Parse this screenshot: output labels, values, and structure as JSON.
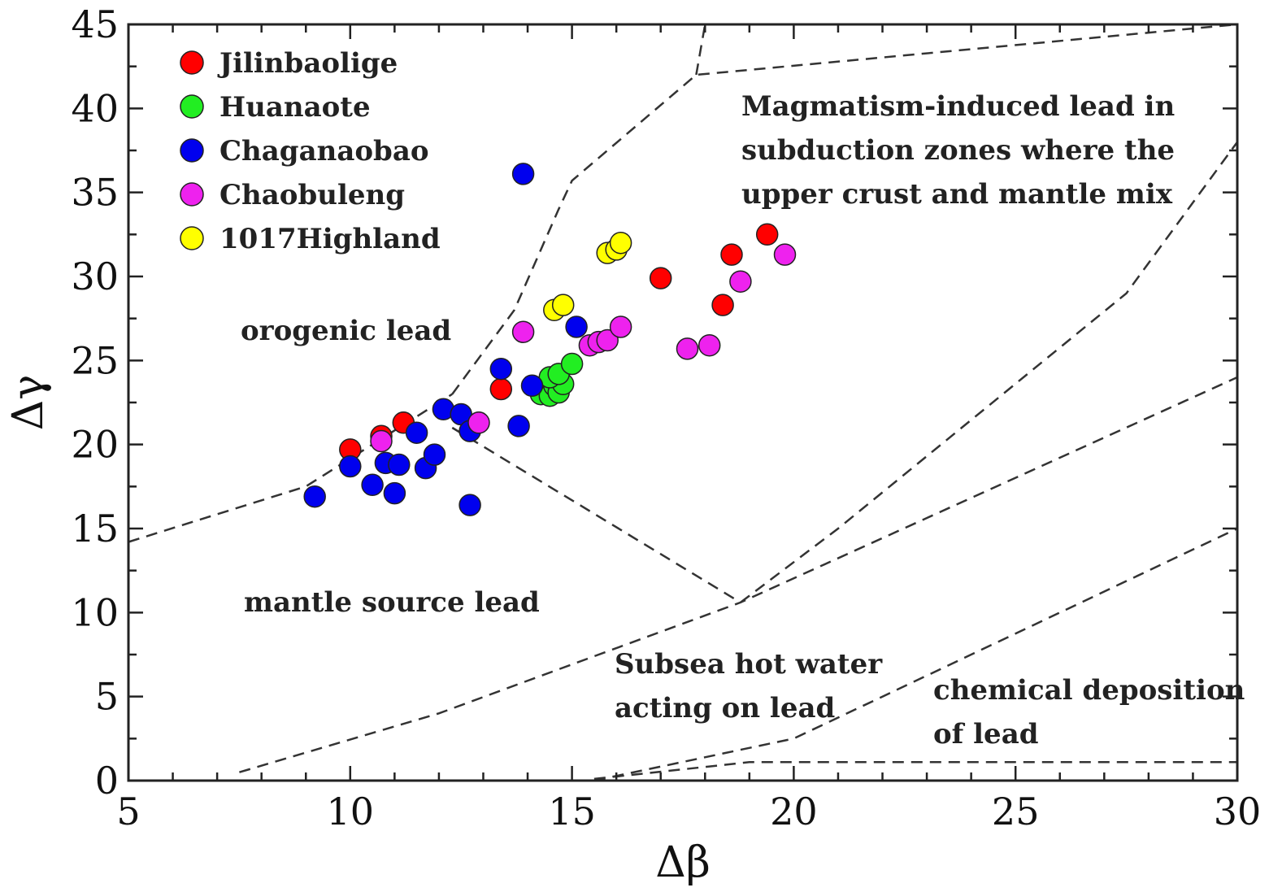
{
  "chart_data": {
    "type": "scatter",
    "title": "",
    "xlabel": "Δβ",
    "ylabel": "Δγ",
    "xlim": [
      5,
      30
    ],
    "ylim": [
      0,
      45
    ],
    "xticks": [
      5,
      10,
      15,
      20,
      25,
      30
    ],
    "yticks": [
      0,
      5,
      10,
      15,
      20,
      25,
      30,
      35,
      40,
      45
    ],
    "legend_position": "top-left",
    "series": [
      {
        "name": "Jilinbaolige",
        "color": "#ff0000",
        "points": [
          [
            10.0,
            19.7
          ],
          [
            10.7,
            20.5
          ],
          [
            11.2,
            21.3
          ],
          [
            13.4,
            23.3
          ],
          [
            17.0,
            29.9
          ],
          [
            18.4,
            28.3
          ],
          [
            18.6,
            31.3
          ],
          [
            19.4,
            32.5
          ]
        ]
      },
      {
        "name": "Huanaote",
        "color": "#22ee22",
        "points": [
          [
            14.3,
            23.0
          ],
          [
            14.5,
            22.9
          ],
          [
            14.6,
            23.5
          ],
          [
            14.7,
            23.1
          ],
          [
            14.8,
            23.6
          ],
          [
            14.5,
            24.0
          ],
          [
            14.7,
            24.2
          ],
          [
            15.0,
            24.8
          ]
        ]
      },
      {
        "name": "Chaganaobao",
        "color": "#0000ee",
        "points": [
          [
            9.2,
            16.9
          ],
          [
            10.0,
            18.7
          ],
          [
            10.5,
            17.6
          ],
          [
            10.8,
            18.9
          ],
          [
            11.0,
            17.1
          ],
          [
            11.1,
            18.8
          ],
          [
            11.5,
            20.7
          ],
          [
            11.7,
            18.6
          ],
          [
            11.9,
            19.4
          ],
          [
            12.1,
            22.1
          ],
          [
            12.5,
            21.8
          ],
          [
            12.7,
            20.8
          ],
          [
            12.7,
            16.4
          ],
          [
            13.4,
            24.5
          ],
          [
            13.8,
            21.1
          ],
          [
            14.1,
            23.5
          ],
          [
            15.1,
            27.0
          ],
          [
            13.9,
            36.1
          ]
        ]
      },
      {
        "name": "Chaobuleng",
        "color": "#ee22ee",
        "points": [
          [
            10.7,
            20.2
          ],
          [
            12.9,
            21.3
          ],
          [
            13.9,
            26.7
          ],
          [
            15.4,
            25.9
          ],
          [
            15.6,
            26.1
          ],
          [
            15.8,
            26.2
          ],
          [
            16.1,
            27.0
          ],
          [
            17.6,
            25.7
          ],
          [
            18.1,
            25.9
          ],
          [
            18.8,
            29.7
          ],
          [
            19.8,
            31.3
          ]
        ]
      },
      {
        "name": "1017Highland",
        "color": "#ffff00",
        "points": [
          [
            14.6,
            28.0
          ],
          [
            14.8,
            28.3
          ],
          [
            15.8,
            31.4
          ],
          [
            16.0,
            31.6
          ],
          [
            16.1,
            32.0
          ]
        ]
      }
    ],
    "boundaries": [
      {
        "name": "orogenic-upper-boundary",
        "points": [
          [
            12.3,
            23.0
          ],
          [
            13.7,
            28.0
          ],
          [
            14.7,
            34.0
          ],
          [
            15.0,
            35.7
          ],
          [
            17.8,
            42.0
          ],
          [
            30.0,
            45.0
          ]
        ]
      },
      {
        "name": "orogenic-vertical-boundary",
        "points": [
          [
            17.8,
            42.0
          ],
          [
            18.0,
            45.0
          ]
        ]
      },
      {
        "name": "mantle-upper-boundary",
        "points": [
          [
            5.0,
            14.2
          ],
          [
            9.0,
            17.5
          ],
          [
            12.3,
            23.0
          ]
        ]
      },
      {
        "name": "mantle-lower-boundary",
        "points": [
          [
            12.3,
            21.0
          ],
          [
            18.8,
            10.6
          ]
        ]
      },
      {
        "name": "magmatism-lower-boundary",
        "points": [
          [
            18.8,
            10.6
          ],
          [
            21.0,
            15.0
          ],
          [
            27.5,
            29.0
          ],
          [
            30.0,
            38.0
          ]
        ]
      },
      {
        "name": "subsea-upper-boundary",
        "points": [
          [
            7.5,
            0.5
          ],
          [
            12.0,
            4.0
          ],
          [
            18.8,
            10.6
          ],
          [
            30.0,
            24.0
          ]
        ]
      },
      {
        "name": "chemical-upper-boundary",
        "points": [
          [
            15.5,
            0.0
          ],
          [
            20.0,
            2.5
          ],
          [
            22.0,
            5.0
          ],
          [
            30.0,
            15.0
          ]
        ]
      },
      {
        "name": "chemical-bottom-boundary",
        "points": [
          [
            15.5,
            0.1
          ],
          [
            19.0,
            1.1
          ],
          [
            30.0,
            1.1
          ]
        ]
      }
    ],
    "region_labels": {
      "magmatism": [
        "Magmatism-induced lead in",
        "subduction zones where the",
        "upper crust and mantle mix"
      ],
      "orogenic": "orogenic lead",
      "mantle": "mantle source lead",
      "subsea": [
        "Subsea hot water",
        "acting on lead"
      ],
      "chemical": [
        "chemical deposition",
        "of lead"
      ]
    }
  }
}
